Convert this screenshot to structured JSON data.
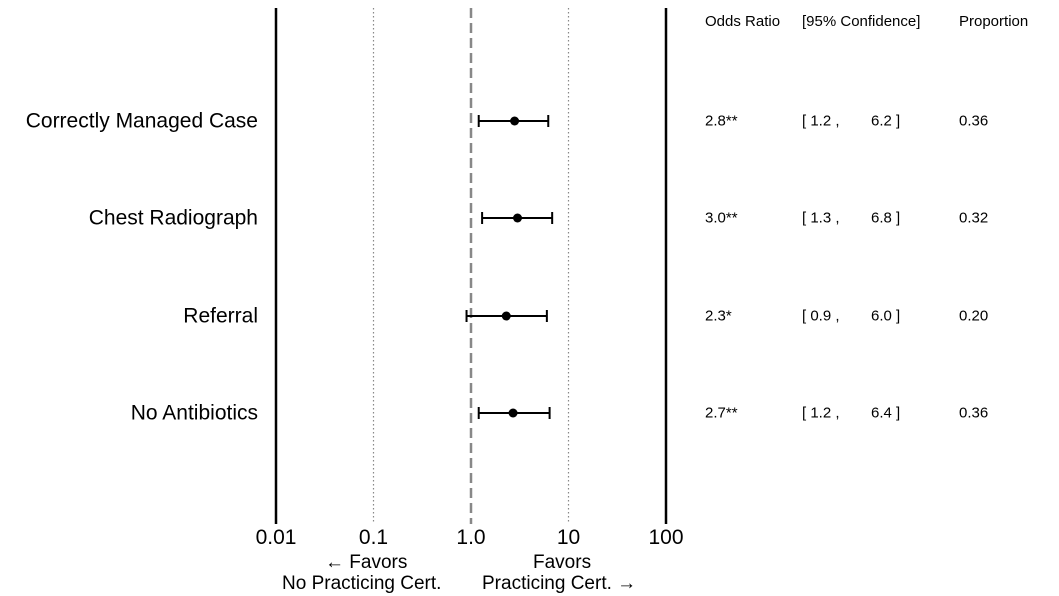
{
  "chart_data": {
    "type": "forest",
    "x_scale": "log",
    "xlim": [
      0.01,
      100
    ],
    "reference_line": 1.0,
    "x_ticks": [
      0.01,
      0.1,
      1.0,
      10,
      100
    ],
    "x_tick_labels": [
      "0.01",
      "0.1",
      "1.0",
      "10",
      "100"
    ],
    "categories": [
      "Correctly Managed Case",
      "Chest Radiograph",
      "Referral",
      "No Antibiotics"
    ],
    "odds_ratio": [
      2.8,
      3.0,
      2.3,
      2.7
    ],
    "ci_low": [
      1.2,
      1.3,
      0.9,
      1.2
    ],
    "ci_high": [
      6.2,
      6.8,
      6.0,
      6.4
    ],
    "grid": "dotted verticals at 0.1 and 10",
    "column_headers": {
      "odds_ratio": "Odds Ratio",
      "confidence": "[95% Confidence]",
      "proportion": "Proportion"
    },
    "rows": [
      {
        "or_text": "2.8**",
        "ci_low_text": "[ 1.2 ,",
        "ci_high_text": "6.2 ]",
        "proportion": "0.36"
      },
      {
        "or_text": "3.0**",
        "ci_low_text": "[ 1.3 ,",
        "ci_high_text": "6.8 ]",
        "proportion": "0.32"
      },
      {
        "or_text": "2.3*",
        "ci_low_text": "[ 0.9 ,",
        "ci_high_text": "6.0 ]",
        "proportion": "0.20"
      },
      {
        "or_text": "2.7**",
        "ci_low_text": "[ 1.2 ,",
        "ci_high_text": "6.4 ]",
        "proportion": "0.36"
      }
    ],
    "footer": {
      "left_line1": "← Favors",
      "left_line2": "No Practicing Cert.",
      "right_line1": "Favors",
      "right_line2": "Practicing Cert. →"
    }
  }
}
